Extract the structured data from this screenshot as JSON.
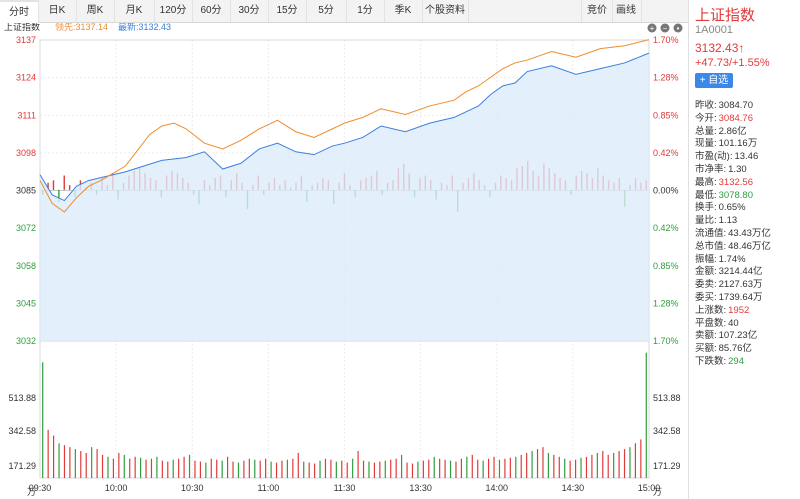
{
  "tabs": [
    {
      "label": "分时",
      "active": true
    },
    {
      "label": "日K"
    },
    {
      "label": "周K"
    },
    {
      "label": "月K"
    },
    {
      "label": "120分"
    },
    {
      "label": "60分"
    },
    {
      "label": "30分"
    },
    {
      "label": "15分"
    },
    {
      "label": "5分"
    },
    {
      "label": "1分"
    },
    {
      "label": "季K"
    },
    {
      "label": "个股资料"
    }
  ],
  "toolbar_right": [
    "竞价",
    "画线"
  ],
  "chart_header": {
    "name": "上证指数",
    "lead": "领先:3137.14",
    "latest": "最新:3132.43"
  },
  "colors": {
    "up": "#e03a3a",
    "down": "#2e9e3e",
    "index_line": "#3b7fe0",
    "lead_line": "#ef8c2c",
    "area_fill": "#dcecfa",
    "tab_active": "#ffffff"
  },
  "zoom_icons": [
    "plus-circle-icon",
    "minus-circle-icon",
    "settings-circle-icon"
  ],
  "chart_data": {
    "type": "line",
    "price_axis_left": [
      "3137",
      "3124",
      "3111",
      "3098",
      "3085",
      "3072",
      "3058",
      "3045",
      "3032"
    ],
    "pct_axis_right": [
      "1.70%",
      "1.28%",
      "0.85%",
      "0.42%",
      "0.00%",
      "0.42%",
      "0.85%",
      "1.28%",
      "1.70%"
    ],
    "volume_axis": [
      "513.88",
      "342.58",
      "171.29",
      "万"
    ],
    "time_axis": [
      "09:30",
      "10:00",
      "10:30",
      "11:00",
      "11:30",
      "13:30",
      "14:00",
      "14:30",
      "15:00"
    ],
    "prev_close": 3084.7,
    "ylim": [
      3032,
      3137
    ],
    "index_series": {
      "name": "最新",
      "x": [
        0,
        0.02,
        0.04,
        0.06,
        0.08,
        0.1,
        0.14,
        0.2,
        0.24,
        0.27,
        0.3,
        0.33,
        0.36,
        0.39,
        0.42,
        0.45,
        0.48,
        0.5,
        0.53,
        0.56,
        0.6,
        0.64,
        0.68,
        0.7,
        0.72,
        0.74,
        0.76,
        0.78,
        0.8,
        0.84,
        0.88,
        0.92,
        0.96,
        1.0
      ],
      "values": [
        3090,
        3083,
        3081,
        3086,
        3088,
        3089,
        3091,
        3095,
        3096,
        3098,
        3092,
        3094,
        3099,
        3101,
        3098,
        3097,
        3100,
        3101,
        3103,
        3107,
        3105,
        3108,
        3110,
        3112,
        3114,
        3118,
        3121,
        3122,
        3126,
        3128,
        3125,
        3127,
        3129,
        3132.43
      ]
    },
    "lead_series": {
      "name": "领先",
      "x": [
        0,
        0.02,
        0.04,
        0.06,
        0.08,
        0.1,
        0.14,
        0.18,
        0.2,
        0.22,
        0.24,
        0.27,
        0.3,
        0.33,
        0.36,
        0.39,
        0.42,
        0.45,
        0.48,
        0.5,
        0.53,
        0.56,
        0.6,
        0.64,
        0.68,
        0.7,
        0.72,
        0.74,
        0.76,
        0.78,
        0.8,
        0.84,
        0.88,
        0.92,
        0.96,
        1.0
      ],
      "values": [
        3088,
        3080,
        3077,
        3082,
        3086,
        3088,
        3093,
        3104,
        3107,
        3108,
        3106,
        3101,
        3099,
        3102,
        3106,
        3109,
        3105,
        3103,
        3106,
        3108,
        3110,
        3113,
        3111,
        3114,
        3116,
        3119,
        3121,
        3124,
        3127,
        3129,
        3130,
        3133,
        3131,
        3134,
        3135,
        3137.14
      ]
    },
    "momentum_bars": [
      -2,
      3,
      4,
      -5,
      6,
      2,
      -3,
      4,
      1,
      3,
      -2,
      5,
      2,
      7,
      -4,
      3,
      6,
      8,
      9,
      7,
      5,
      4,
      -3,
      6,
      8,
      7,
      5,
      3,
      -2,
      -6,
      4,
      2,
      5,
      6,
      -3,
      4,
      7,
      3,
      -8,
      2,
      6,
      -2,
      3,
      5,
      2,
      4,
      1,
      3,
      6,
      -5,
      2,
      3,
      5,
      4,
      -6,
      3,
      7,
      2,
      -3,
      4,
      5,
      6,
      8,
      -2,
      3,
      4,
      9,
      11,
      7,
      -3,
      5,
      6,
      4,
      -4,
      3,
      2,
      6,
      -9,
      3,
      5,
      7,
      4,
      2,
      -3,
      3,
      6,
      5,
      4,
      9,
      10,
      12,
      8,
      6,
      11,
      9,
      7,
      5,
      4,
      -2,
      6,
      8,
      7,
      5,
      9,
      6,
      4,
      3,
      5,
      -7,
      2,
      5,
      3,
      4
    ],
    "volume": [
      600,
      250,
      220,
      180,
      170,
      160,
      150,
      140,
      130,
      160,
      150,
      120,
      110,
      100,
      130,
      120,
      100,
      110,
      105,
      95,
      100,
      110,
      90,
      85,
      95,
      100,
      110,
      120,
      90,
      85,
      80,
      100,
      95,
      90,
      110,
      85,
      80,
      90,
      100,
      95,
      90,
      100,
      85,
      80,
      90,
      95,
      100,
      130,
      85,
      80,
      75,
      90,
      100,
      95,
      85,
      90,
      80,
      100,
      140,
      90,
      85,
      80,
      85,
      90,
      95,
      100,
      120,
      80,
      75,
      85,
      90,
      95,
      110,
      100,
      95,
      90,
      85,
      100,
      110,
      120,
      95,
      90,
      100,
      110,
      95,
      100,
      105,
      110,
      120,
      130,
      140,
      150,
      160,
      130,
      120,
      110,
      100,
      90,
      95,
      105,
      110,
      120,
      130,
      140,
      120,
      130,
      140,
      150,
      160,
      180,
      200,
      650
    ]
  },
  "sidebar": {
    "title": "上证指数",
    "code": "1A0001",
    "price": "3132.43↑",
    "change": "+47.73/+1.55%",
    "add_button": "+ 自选",
    "stats": [
      {
        "label": "昨收:",
        "value": "3084.70",
        "color": "normal"
      },
      {
        "label": "今开:",
        "value": "3084.76",
        "color": "up"
      },
      {
        "label": "总量:",
        "value": "2.86亿",
        "color": "normal"
      },
      {
        "label": "现量:",
        "value": "101.16万",
        "color": "normal"
      },
      {
        "label": "市盈(动):",
        "value": "13.46",
        "color": "normal"
      },
      {
        "label": "市净率:",
        "value": "1.30",
        "color": "normal"
      },
      {
        "label": "最高:",
        "value": "3132.56",
        "color": "up"
      },
      {
        "label": "最低:",
        "value": "3078.80",
        "color": "down"
      },
      {
        "label": "换手:",
        "value": "0.65%",
        "color": "normal"
      },
      {
        "label": "量比:",
        "value": "1.13",
        "color": "normal"
      },
      {
        "label": "流通值:",
        "value": "43.43万亿",
        "color": "normal"
      },
      {
        "label": "总市值:",
        "value": "48.46万亿",
        "color": "normal"
      },
      {
        "label": "振幅:",
        "value": "1.74%",
        "color": "normal"
      },
      {
        "label": "金额:",
        "value": "3214.44亿",
        "color": "normal"
      },
      {
        "label": "委卖:",
        "value": "2127.63万",
        "color": "normal"
      },
      {
        "label": "委买:",
        "value": "1739.64万",
        "color": "normal"
      },
      {
        "label": "上涨数:",
        "value": "1952",
        "color": "up"
      },
      {
        "label": "平盘数:",
        "value": "40",
        "color": "normal"
      },
      {
        "label": "卖额:",
        "value": "107.23亿",
        "color": "normal"
      },
      {
        "label": "买额:",
        "value": "85.76亿",
        "color": "normal"
      },
      {
        "label": "下跌数:",
        "value": "294",
        "color": "down"
      }
    ]
  }
}
